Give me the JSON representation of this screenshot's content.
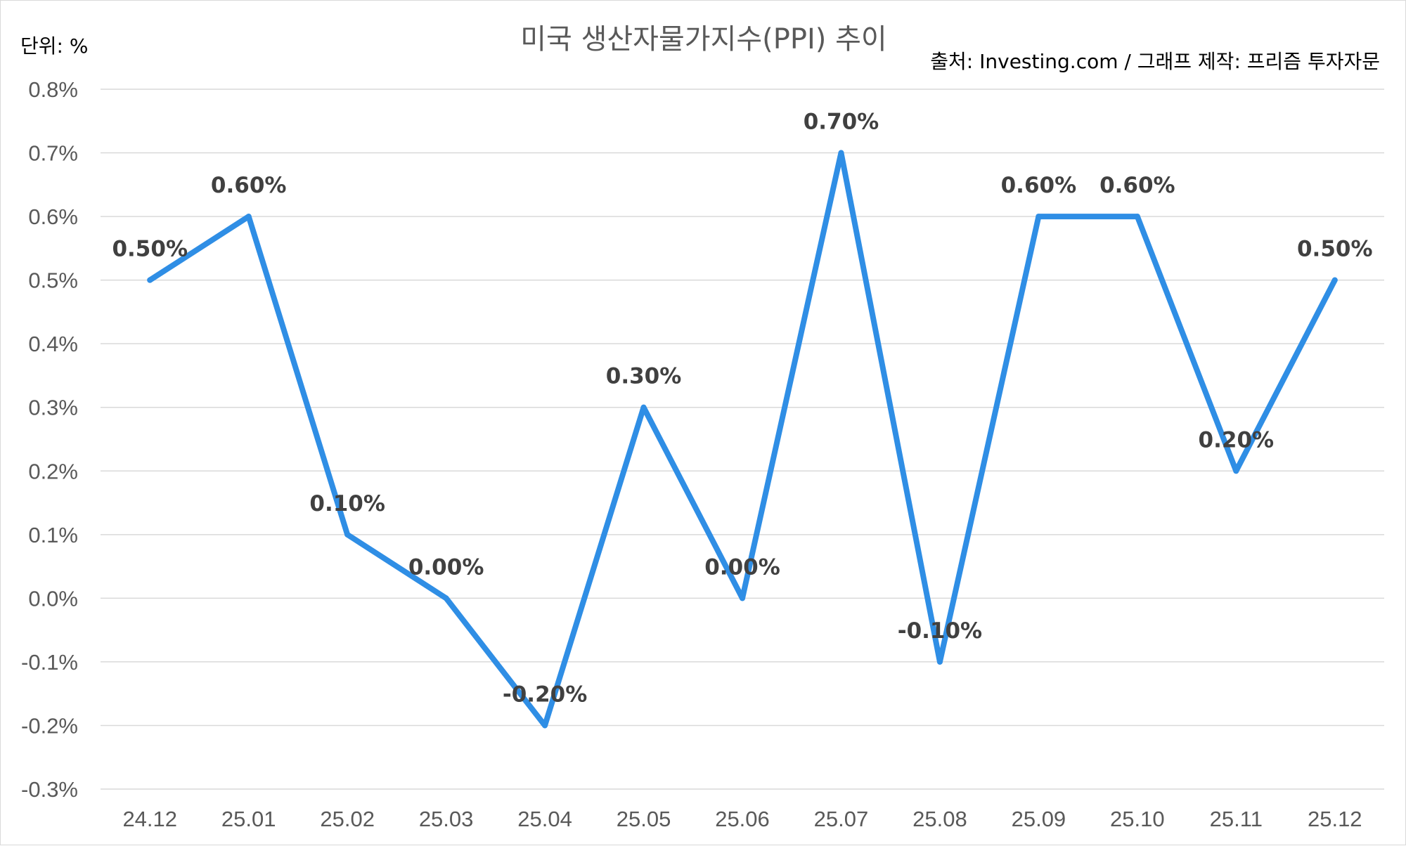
{
  "chart_data": {
    "type": "line",
    "title": "미국 생산자물가지수(PPI) 추이",
    "unit_label": "단위: %",
    "source": "출처: Investing.com / 그래프 제작: 프리즘 투자자문",
    "categories": [
      "24.12",
      "25.01",
      "25.02",
      "25.03",
      "25.04",
      "25.05",
      "25.06",
      "25.07",
      "25.08",
      "25.09",
      "25.10",
      "25.11",
      "25.12"
    ],
    "series": [
      {
        "values": [
          0.5,
          0.6,
          0.1,
          0.0,
          -0.2,
          0.3,
          0.0,
          0.7,
          -0.1,
          0.6,
          0.6,
          0.2,
          0.5
        ],
        "data_labels": [
          "0.50%",
          "0.60%",
          "0.10%",
          "0.00%",
          "-0.20%",
          "0.30%",
          "0.00%",
          "0.70%",
          "-0.10%",
          "0.60%",
          "0.60%",
          "0.20%",
          "0.50%"
        ],
        "color": "#2f8ee5"
      }
    ],
    "ylim": [
      -0.3,
      0.8
    ],
    "yticks": [
      0.8,
      0.7,
      0.6,
      0.5,
      0.4,
      0.3,
      0.2,
      0.1,
      0.0,
      -0.1,
      -0.2,
      -0.3
    ],
    "ytick_labels": [
      "0.8%",
      "0.7%",
      "0.6%",
      "0.5%",
      "0.4%",
      "0.3%",
      "0.2%",
      "0.1%",
      "0.0%",
      "-0.1%",
      "-0.2%",
      "-0.3%"
    ],
    "grid": true,
    "legend": "none"
  }
}
